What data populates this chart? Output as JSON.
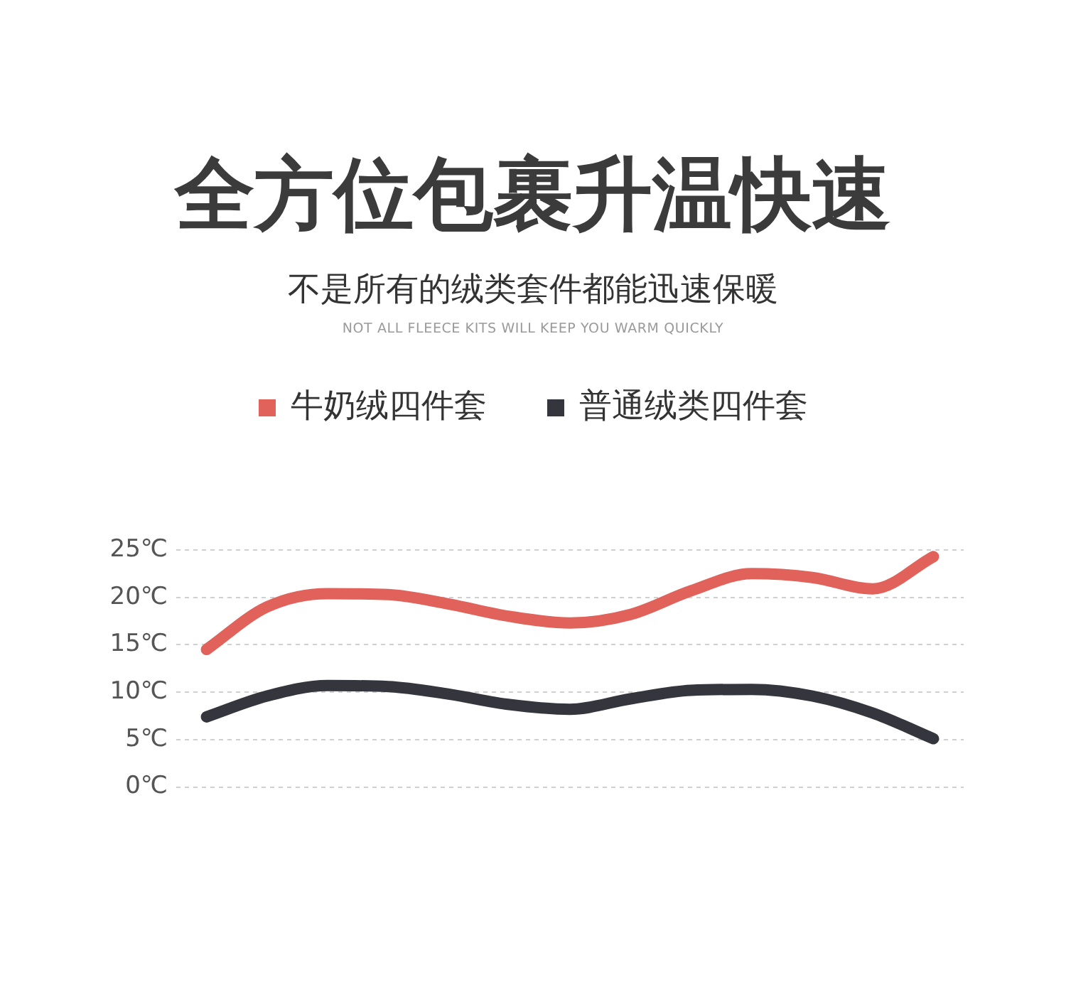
{
  "chart_data": {
    "type": "line",
    "title": "全方位包裹升温快速",
    "subtitle": "不是所有的绒类套件都能迅速保暖",
    "annotations": [
      "NOT ALL FLEECE KITS WILL KEEP YOU WARM QUICKLY"
    ],
    "categories": [
      null,
      null,
      null,
      null,
      null,
      null,
      null,
      null,
      null,
      null,
      null,
      null,
      null
    ],
    "series": [
      {
        "name": "牛奶绒四件套",
        "color": "#e0625b",
        "values": [
          14.5,
          19.0,
          20.4,
          20.3,
          19.3,
          18.0,
          17.3,
          18.2,
          20.7,
          22.5,
          22.1,
          20.9,
          24.3
        ]
      },
      {
        "name": "普通绒类四件套",
        "color": "#35353d",
        "values": [
          7.4,
          9.6,
          10.7,
          10.6,
          9.8,
          8.7,
          8.2,
          9.3,
          10.2,
          10.3,
          9.6,
          7.8,
          5.1
        ]
      }
    ],
    "ylim": [
      0,
      25
    ],
    "yticks": [
      {
        "value": 0,
        "label": "0℃"
      },
      {
        "value": 5,
        "label": "5℃"
      },
      {
        "value": 10,
        "label": "10℃"
      },
      {
        "value": 15,
        "label": "15℃"
      },
      {
        "value": 20,
        "label": "20℃"
      },
      {
        "value": 25,
        "label": "25℃"
      }
    ],
    "grid": "y",
    "legend": "top",
    "tick_labels": "y",
    "marker": "none",
    "line_style": "solid"
  }
}
